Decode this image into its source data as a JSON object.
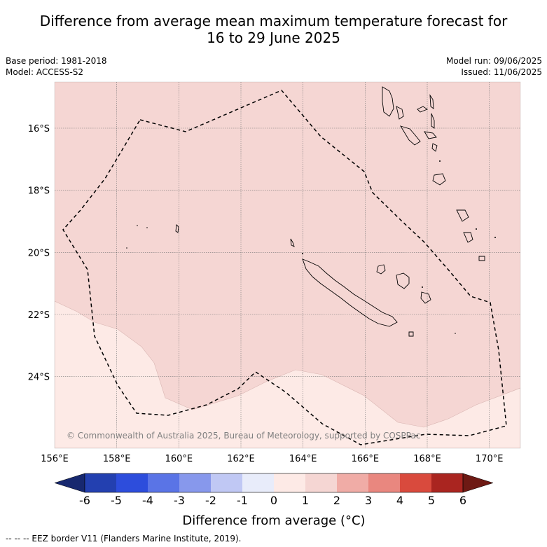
{
  "title": {
    "line1": "Difference from average mean maximum temperature forecast for",
    "line2": "16 to 29 June 2025"
  },
  "meta_left": {
    "base_period": "Base period: 1981-2018",
    "model": "Model: ACCESS-S2"
  },
  "meta_right": {
    "model_run": "Model run: 09/06/2025",
    "issued": "Issued: 11/06/2025"
  },
  "map": {
    "lon_range": [
      156,
      171
    ],
    "lat_range": [
      -26.3,
      -14.5
    ],
    "x_ticks": [
      "156°E",
      "158°E",
      "160°E",
      "162°E",
      "164°E",
      "166°E",
      "168°E",
      "170°E"
    ],
    "y_ticks": [
      "16°S",
      "18°S",
      "20°S",
      "22°S",
      "24°S"
    ],
    "gridlines": true,
    "colors": {
      "category_0_1": "#fdeae6",
      "category_1_2": "#f5d6d3",
      "coast": "#000000"
    },
    "copyright": "© Commonwealth of Australia 2025, Bureau of Meteorology, supported by COSPPac"
  },
  "colorbar": {
    "ticks": [
      "-6",
      "-5",
      "-4",
      "-3",
      "-2",
      "-1",
      "0",
      "1",
      "2",
      "3",
      "4",
      "5",
      "6"
    ],
    "colors": [
      "#17286f",
      "#2340b0",
      "#2d4ddc",
      "#5a74e6",
      "#8798ec",
      "#c0c8f4",
      "#e8ecfa",
      "#fdeae6",
      "#f5d6d3",
      "#f0aca6",
      "#e9877f",
      "#d94a3d",
      "#aa2520",
      "#6e1a14"
    ],
    "label": "Difference from average (°C)"
  },
  "footer": "-- -- -- EEZ border V11 (Flanders Marine Institute, 2019)."
}
